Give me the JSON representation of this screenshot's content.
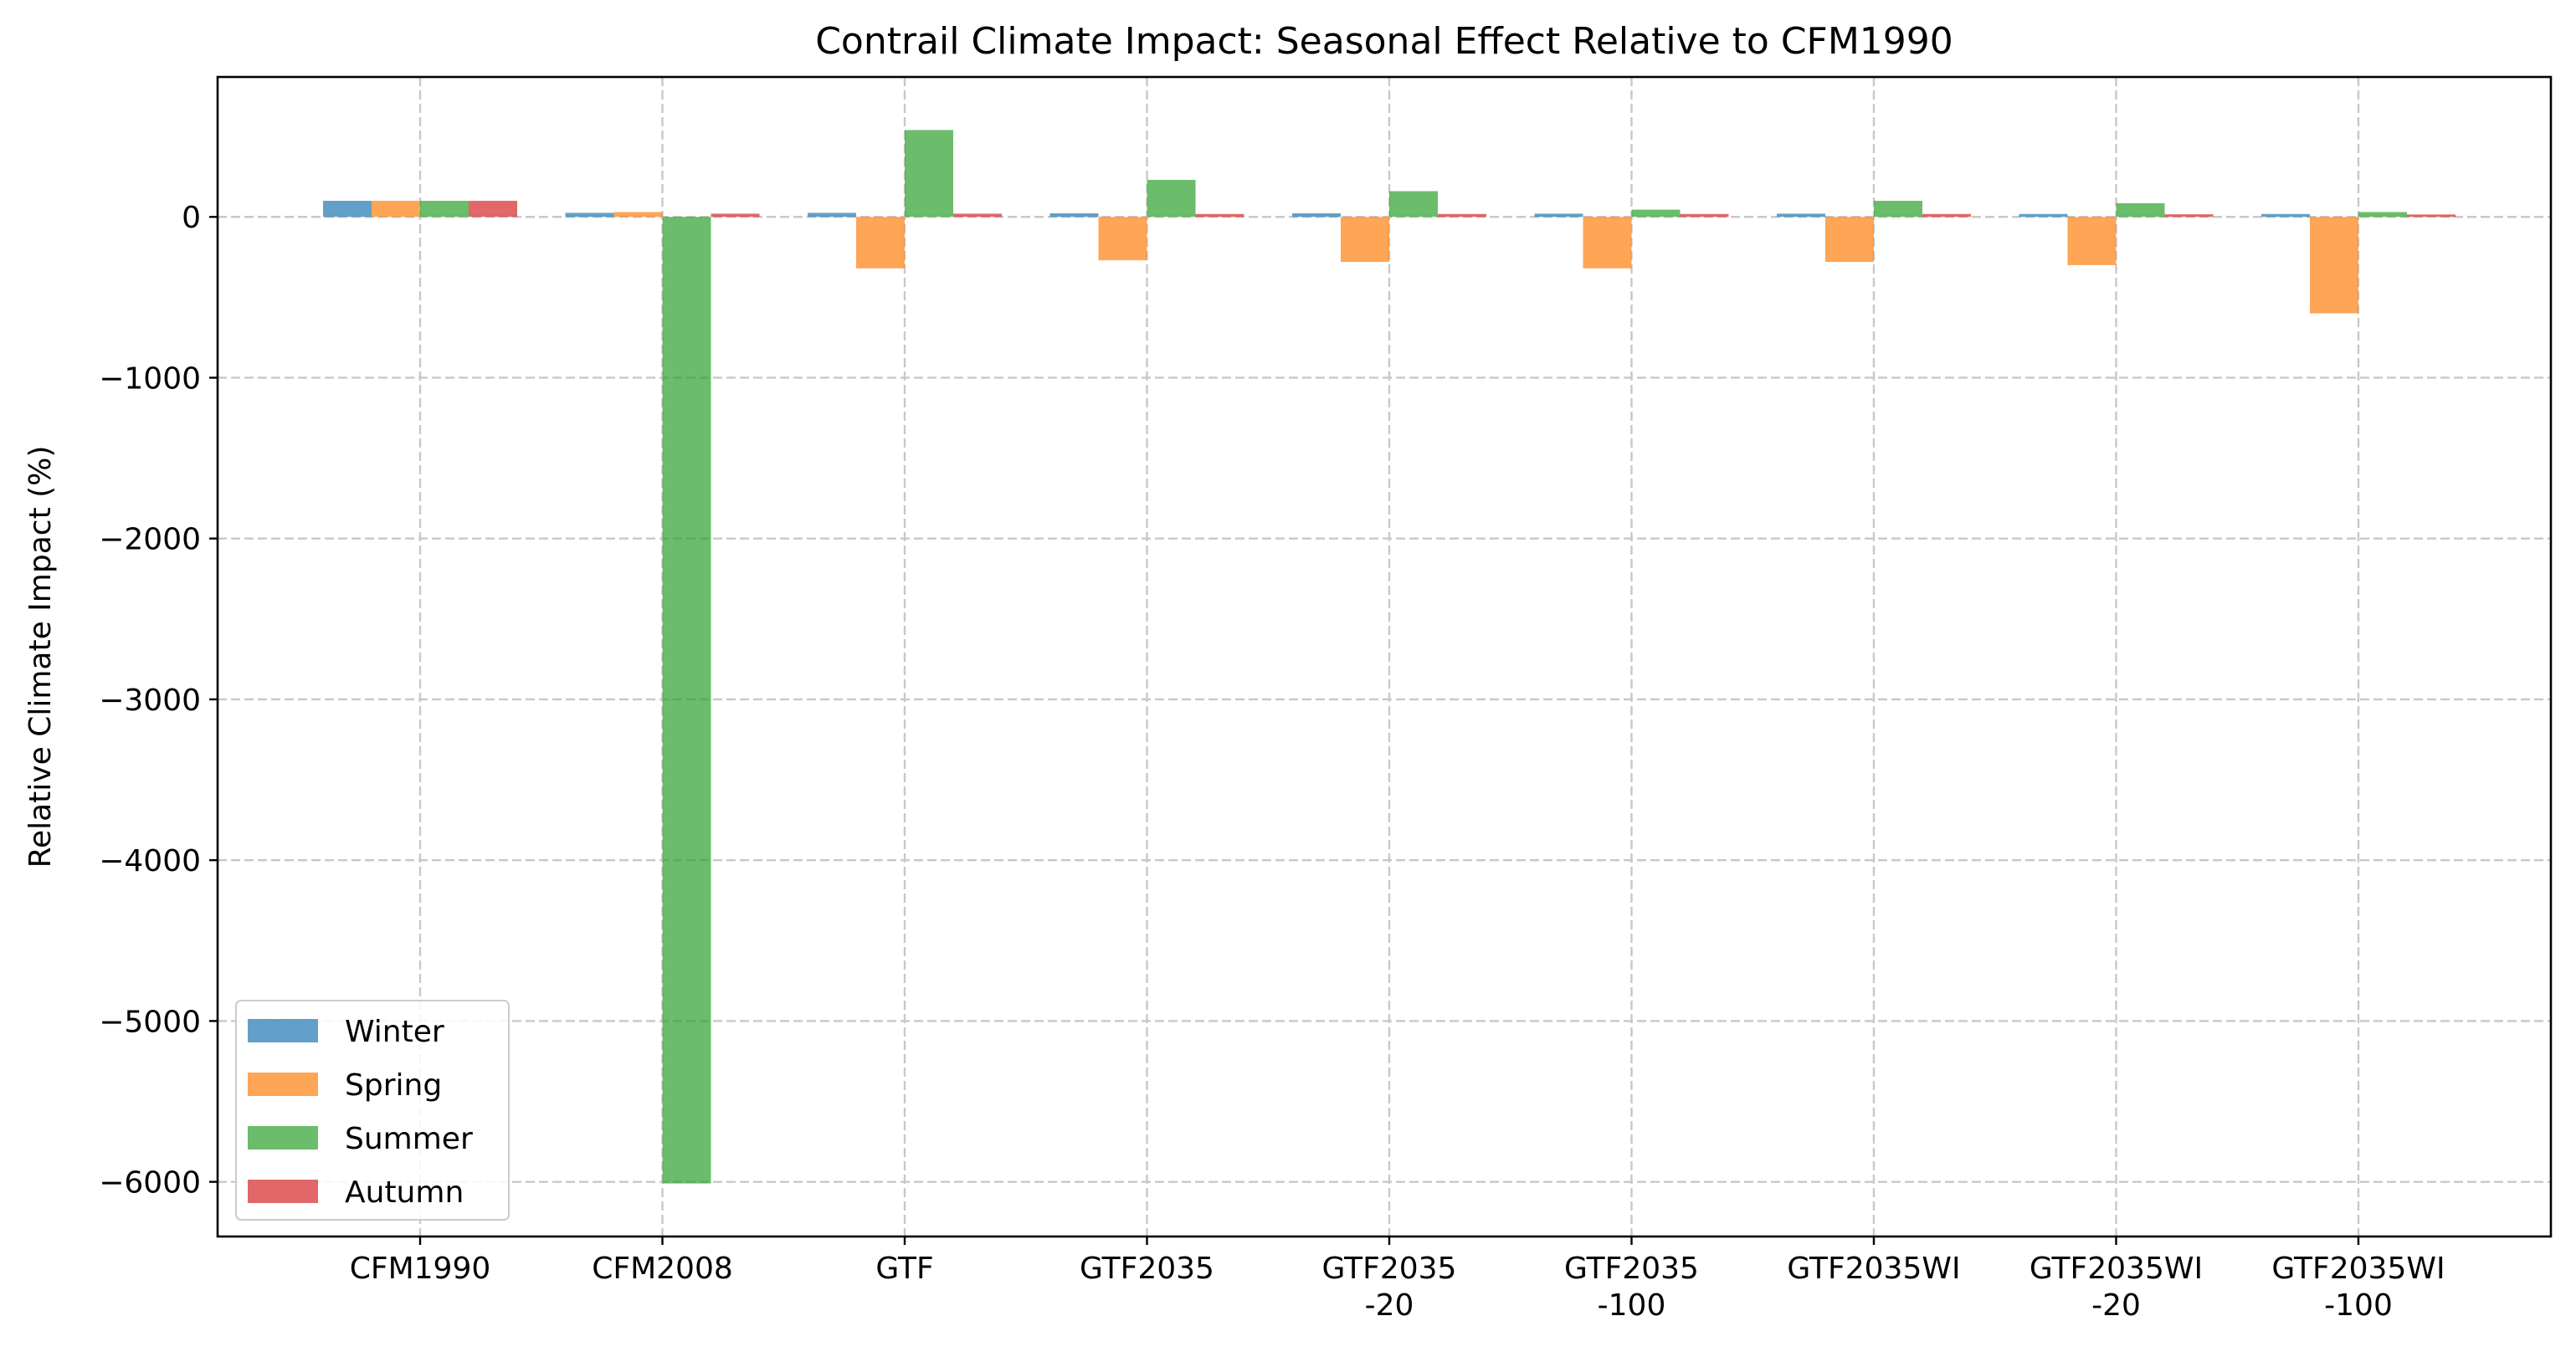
{
  "chart_data": {
    "type": "bar",
    "title": "Contrail Climate Impact: Seasonal Effect Relative to CFM1990",
    "xlabel": "",
    "ylabel": "Relative Climate Impact (%)",
    "categories": [
      "CFM1990",
      "CFM2008",
      "GTF",
      "GTF2035",
      "GTF2035\n-20",
      "GTF2035\n-100",
      "GTF2035WI",
      "GTF2035WI\n-20",
      "GTF2035WI\n-100"
    ],
    "series": [
      {
        "name": "Winter",
        "color": "#1f77b4",
        "values": [
          100,
          25,
          25,
          22,
          22,
          20,
          20,
          18,
          18
        ]
      },
      {
        "name": "Spring",
        "color": "#ff7f0e",
        "values": [
          100,
          30,
          -320,
          -270,
          -280,
          -320,
          -280,
          -300,
          -600
        ]
      },
      {
        "name": "Summer",
        "color": "#2ca02c",
        "values": [
          100,
          -6010,
          540,
          230,
          160,
          45,
          100,
          85,
          30
        ]
      },
      {
        "name": "Autumn",
        "color": "#d62728",
        "values": [
          100,
          20,
          20,
          18,
          18,
          18,
          18,
          16,
          15
        ]
      }
    ],
    "ylim": [
      -6340,
      870
    ],
    "yticks": [
      0,
      -1000,
      -2000,
      -3000,
      -4000,
      -5000,
      -6000
    ],
    "ytick_labels": [
      "0",
      "−1000",
      "−2000",
      "−3000",
      "−4000",
      "−5000",
      "−6000"
    ],
    "grid": true,
    "legend_position": "lower-left"
  }
}
